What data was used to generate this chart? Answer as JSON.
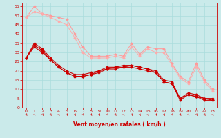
{
  "xlabel": "Vent moyen/en rafales ( km/h )",
  "background_color": "#caeaea",
  "grid_color": "#aadddd",
  "xlim": [
    -0.5,
    23.5
  ],
  "ylim": [
    0,
    57
  ],
  "yticks": [
    0,
    5,
    10,
    15,
    20,
    25,
    30,
    35,
    40,
    45,
    50,
    55
  ],
  "xticks": [
    0,
    1,
    2,
    3,
    4,
    5,
    6,
    7,
    8,
    9,
    10,
    11,
    12,
    13,
    14,
    15,
    16,
    17,
    18,
    19,
    20,
    21,
    22,
    23
  ],
  "series_light": [
    {
      "x": [
        0,
        1,
        2,
        3,
        4,
        5,
        6,
        7,
        8,
        9,
        10,
        11,
        12,
        13,
        14,
        15,
        16,
        17,
        18,
        19,
        20,
        21,
        22,
        23
      ],
      "y": [
        49,
        55,
        51,
        50,
        49,
        48,
        40,
        33,
        28,
        28,
        28,
        29,
        28,
        35,
        29,
        33,
        32,
        32,
        24,
        17,
        14,
        24,
        15,
        10
      ],
      "color": "#ff9999"
    },
    {
      "x": [
        0,
        1,
        2,
        3,
        4,
        5,
        6,
        7,
        8,
        9,
        10,
        11,
        12,
        13,
        14,
        15,
        16,
        17,
        18,
        19,
        20,
        21,
        22,
        23
      ],
      "y": [
        49,
        52,
        51,
        49,
        47,
        45,
        38,
        30,
        27,
        27,
        27,
        28,
        27,
        33,
        28,
        32,
        30,
        30,
        23,
        16,
        13,
        22,
        14,
        9
      ],
      "color": "#ffaaaa"
    }
  ],
  "series_dark": [
    {
      "x": [
        0,
        1,
        2,
        3,
        4,
        5,
        6,
        7,
        8,
        9,
        10,
        11,
        12,
        13,
        14,
        15,
        16,
        17,
        18,
        19,
        20,
        21,
        22,
        23
      ],
      "y": [
        27,
        35,
        32,
        27,
        23,
        20,
        18,
        18,
        19,
        20,
        22,
        22,
        23,
        23,
        22,
        21,
        20,
        15,
        14,
        5,
        8,
        7,
        5,
        5
      ],
      "color": "#cc0000"
    },
    {
      "x": [
        0,
        1,
        2,
        3,
        4,
        5,
        6,
        7,
        8,
        9,
        10,
        11,
        12,
        13,
        14,
        15,
        16,
        17,
        18,
        19,
        20,
        21,
        22,
        23
      ],
      "y": [
        27,
        34,
        31,
        26,
        22,
        19,
        17,
        17,
        18,
        20,
        21,
        22,
        22,
        23,
        22,
        21,
        19,
        14,
        13,
        5,
        7,
        6,
        5,
        4
      ],
      "color": "#cc0000"
    },
    {
      "x": [
        0,
        1,
        2,
        3,
        4,
        5,
        6,
        7,
        8,
        9,
        10,
        11,
        12,
        13,
        14,
        15,
        16,
        17,
        18,
        19,
        20,
        21,
        22,
        23
      ],
      "y": [
        27,
        33,
        30,
        26,
        22,
        19,
        17,
        17,
        18,
        19,
        21,
        21,
        22,
        22,
        21,
        20,
        19,
        14,
        13,
        4,
        7,
        6,
        4,
        4
      ],
      "color": "#cc0000"
    }
  ],
  "arrow_color": "#cc0000",
  "spine_color": "#cc0000",
  "tick_color": "#cc0000",
  "xlabel_color": "#cc0000",
  "xlabel_fontsize": 5.5
}
